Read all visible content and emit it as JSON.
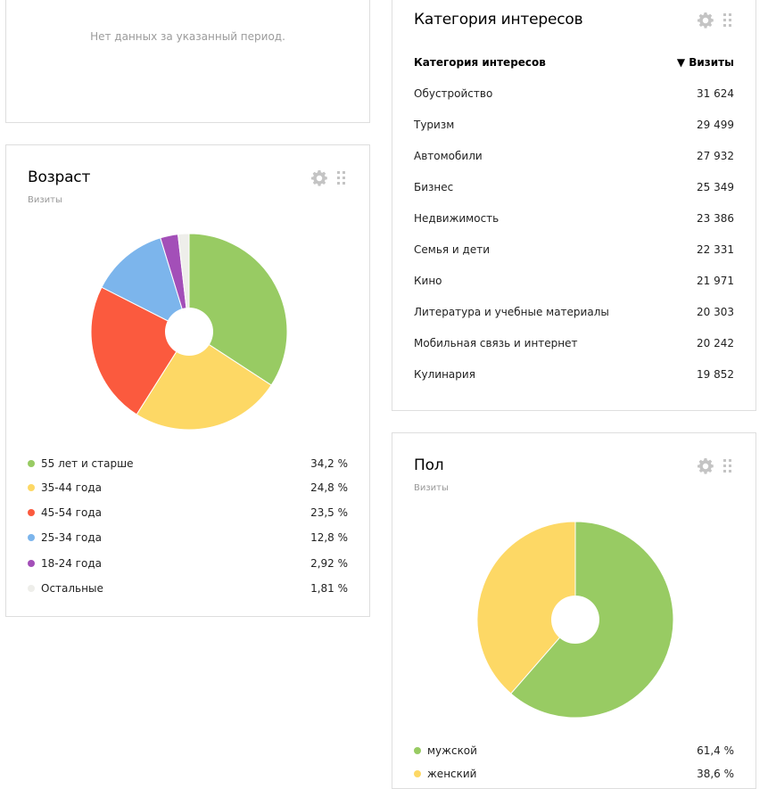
{
  "empty_card": {
    "message": "Нет данных за указанный период."
  },
  "age_card": {
    "title": "Возраст",
    "subtitle": "Визиты",
    "tools": [
      "gear-icon",
      "drag-handle-icon"
    ]
  },
  "interests_card": {
    "title": "Категория интересов",
    "header": {
      "category": "Категория интересов",
      "visits": "▼ Визиты"
    },
    "rows": [
      {
        "name": "Обустройство",
        "value": "31 624"
      },
      {
        "name": "Туризм",
        "value": "29 499"
      },
      {
        "name": "Автомобили",
        "value": "27 932"
      },
      {
        "name": "Бизнес",
        "value": "25 349"
      },
      {
        "name": "Недвижимость",
        "value": "23 386"
      },
      {
        "name": "Семья и дети",
        "value": "22 331"
      },
      {
        "name": "Кино",
        "value": "21 971"
      },
      {
        "name": "Литература и учебные материалы",
        "value": "20 303"
      },
      {
        "name": "Мобильная связь и интернет",
        "value": "20 242"
      },
      {
        "name": "Кулинария",
        "value": "19 852"
      }
    ]
  },
  "gender_card": {
    "title": "Пол",
    "subtitle": "Визиты"
  },
  "chart_data": [
    {
      "type": "pie",
      "chart_title": "Возраст",
      "subtitle": "Визиты",
      "donut": true,
      "slices": [
        {
          "label": "55 лет и старше",
          "value": 34.2,
          "display": "34,2 %",
          "color": "#98cb63"
        },
        {
          "label": "35-44 года",
          "value": 24.8,
          "display": "24,8 %",
          "color": "#fdd865"
        },
        {
          "label": "45-54 года",
          "value": 23.5,
          "display": "23,5 %",
          "color": "#fb5a3e"
        },
        {
          "label": "25-34 года",
          "value": 12.8,
          "display": "12,8 %",
          "color": "#7cb5ec"
        },
        {
          "label": "18-24 года",
          "value": 2.92,
          "display": "2,92 %",
          "color": "#a34fb8"
        },
        {
          "label": "Остальные",
          "value": 1.81,
          "display": "1,81 %",
          "color": "#eeeeea"
        }
      ]
    },
    {
      "type": "pie",
      "chart_title": "Пол",
      "subtitle": "Визиты",
      "donut": true,
      "slices": [
        {
          "label": "мужской",
          "value": 61.4,
          "display": "61,4 %",
          "color": "#98cb63"
        },
        {
          "label": "женский",
          "value": 38.6,
          "display": "38,6 %",
          "color": "#fdd865"
        }
      ]
    }
  ]
}
